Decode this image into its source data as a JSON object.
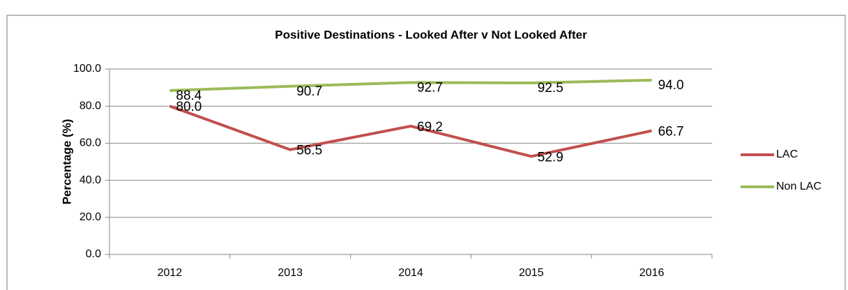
{
  "chart_data": {
    "type": "line",
    "title": "Positive Destinations - Looked After v Not Looked After",
    "y_label": "Percentage (%)",
    "categories": [
      "2012",
      "2013",
      "2014",
      "2015",
      "2016"
    ],
    "series": [
      {
        "name": "LAC",
        "color": "#c0504d",
        "values": [
          80,
          56.5,
          69.2,
          52.9,
          66.7
        ],
        "value_labels": [
          "80.0",
          "56.5",
          "69.2",
          "52.9",
          "66.7"
        ]
      },
      {
        "name": "Non LAC",
        "color": "#9bbb59",
        "values": [
          88.4,
          90.7,
          92.7,
          92.5,
          94
        ],
        "value_labels": [
          "88.4",
          "90.7",
          "92.7",
          "92.5",
          "94.0"
        ]
      }
    ],
    "ylim": [
      0,
      100
    ],
    "yticks": [
      {
        "value": 0,
        "label": "0.0"
      },
      {
        "value": 20,
        "label": "20.0"
      },
      {
        "value": 40,
        "label": "40.0"
      },
      {
        "value": 60,
        "label": "60.0"
      },
      {
        "value": 80,
        "label": "80.0"
      },
      {
        "value": 100,
        "label": "100.0"
      }
    ],
    "grid": true,
    "legend": "right"
  }
}
